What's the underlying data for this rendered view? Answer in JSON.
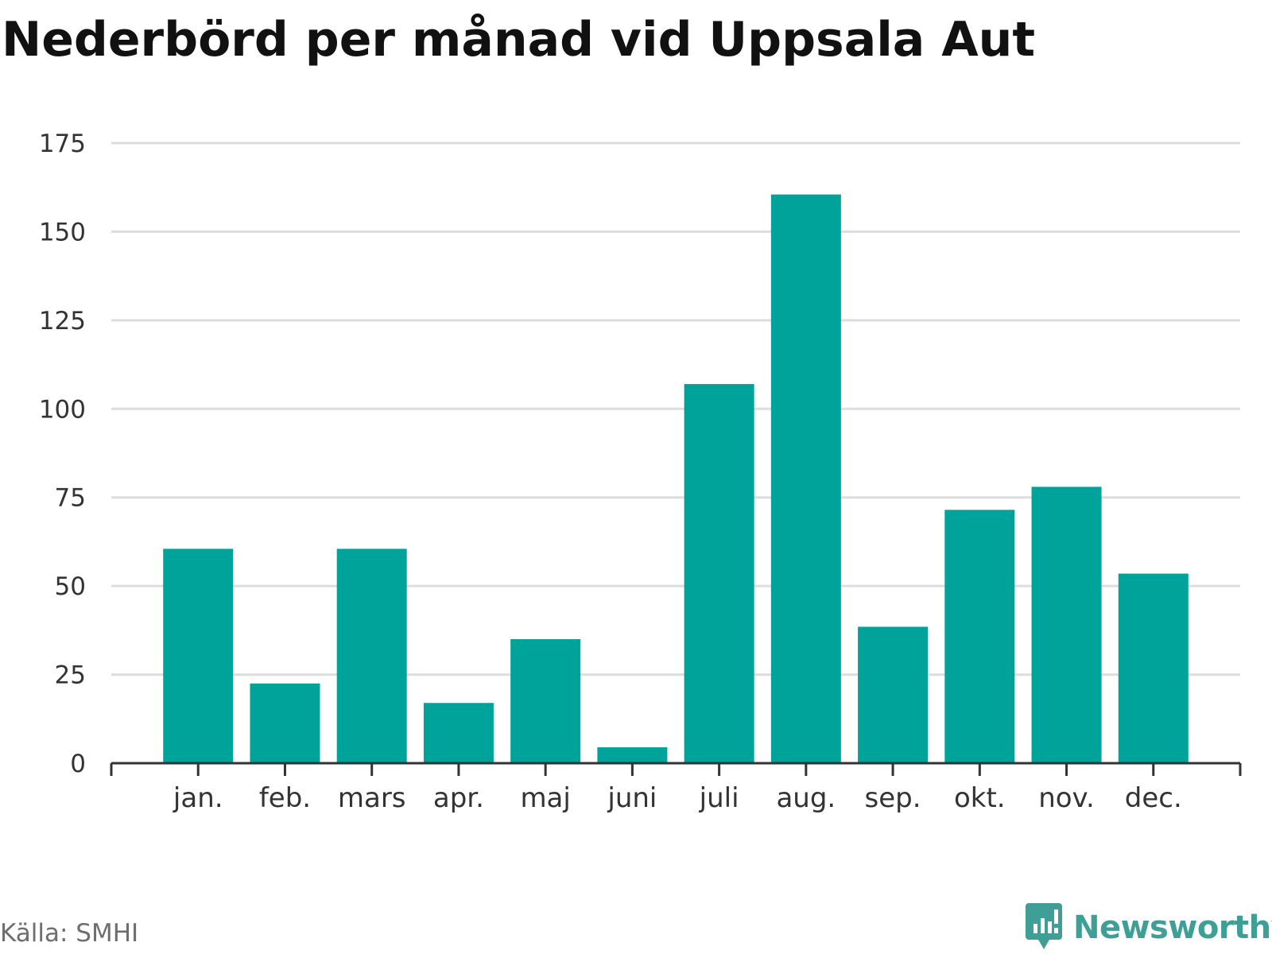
{
  "title": "Nederbörd per månad vid Uppsala Aut",
  "source": "Källa: SMHI",
  "brand": {
    "name": "Newsworthy",
    "icon": "newsworthy-logo-icon",
    "color": "#3f9f96"
  },
  "colors": {
    "bar": "#00a39a",
    "grid": "#dddddd",
    "axis": "#333333"
  },
  "chart_data": {
    "type": "bar",
    "title": "Nederbörd per månad vid Uppsala Aut",
    "categories": [
      "jan.",
      "feb.",
      "mars",
      "apr.",
      "maj",
      "juni",
      "juli",
      "aug.",
      "sep.",
      "okt.",
      "nov.",
      "dec."
    ],
    "values": [
      60.5,
      22.5,
      60.5,
      17,
      35,
      4.5,
      107,
      160.5,
      38.5,
      71.5,
      78,
      53.5
    ],
    "xlabel": "",
    "ylabel": "",
    "ylim": [
      0,
      175
    ],
    "yticks": [
      0,
      25,
      50,
      75,
      100,
      125,
      150,
      175
    ],
    "grid": true,
    "legend": "none"
  }
}
